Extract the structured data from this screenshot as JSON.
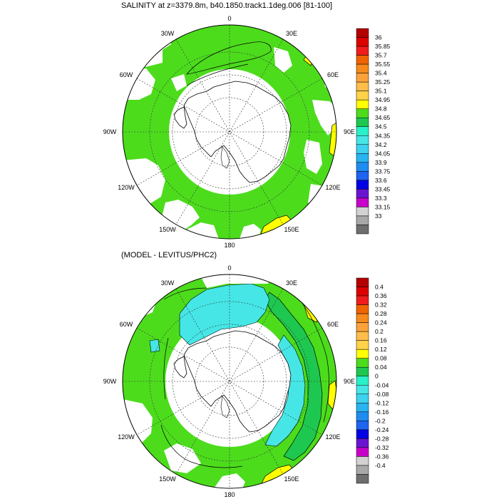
{
  "panels": [
    {
      "title": "SALINITY at z=3379.8m, b40.1850.track1.1deg.006 [81-100]",
      "labels": {
        "top": "0",
        "tr": "30E",
        "r1": "60E",
        "r": "90E",
        "r2": "120E",
        "br": "150E",
        "bottom": "180",
        "bl": "150W",
        "l2": "120W",
        "l": "90W",
        "l1": "60W",
        "tl": "30W"
      },
      "colorbar": {
        "colors": [
          "#b30000",
          "#dd0000",
          "#f01c1c",
          "#f06400",
          "#f78a1a",
          "#fba23a",
          "#ffbe4a",
          "#ffd24a",
          "#ffff00",
          "#4cdc1c",
          "#1ec850",
          "#28f0c8",
          "#46e6e6",
          "#3cd2f0",
          "#28b4f0",
          "#1e8cf0",
          "#1e64f0",
          "#0000e6",
          "#6a14d2",
          "#c800c8",
          "#d2d2d2",
          "#a8a8a8",
          "#6e6e6e"
        ],
        "labels": [
          "36",
          "35.85",
          "35.7",
          "35.55",
          "35.4",
          "35.25",
          "35.1",
          "34.95",
          "34.8",
          "34.65",
          "34.5",
          "34.35",
          "34.2",
          "34.05",
          "33.9",
          "33.75",
          "33.6",
          "33.45",
          "33.3",
          "33.15",
          "33"
        ]
      }
    },
    {
      "title": "(MODEL - LEVITUS/PHC2)",
      "labels": {
        "top": "0",
        "tr": "30E",
        "r1": "60E",
        "r": "90E",
        "r2": "120E",
        "br": "150E",
        "bottom": "180",
        "bl": "150W",
        "l2": "120W",
        "l": "90W",
        "l1": "60W",
        "tl": "30W"
      },
      "colorbar": {
        "colors": [
          "#b30000",
          "#dd0000",
          "#f01c1c",
          "#f06400",
          "#f78a1a",
          "#fba23a",
          "#ffbe4a",
          "#ffd24a",
          "#ffff00",
          "#4cdc1c",
          "#1ec850",
          "#28f0c8",
          "#46e6e6",
          "#3cd2f0",
          "#28b4f0",
          "#1e8cf0",
          "#1e64f0",
          "#0000e6",
          "#6a14d2",
          "#c800c8",
          "#d2d2d2",
          "#a8a8a8",
          "#6e6e6e"
        ],
        "labels": [
          "0.4",
          "0.36",
          "0.32",
          "0.28",
          "0.24",
          "0.2",
          "0.16",
          "0.12",
          "0.08",
          "0.04",
          "0",
          "-0.04",
          "-0.08",
          "-0.12",
          "-0.16",
          "-0.2",
          "-0.24",
          "-0.28",
          "-0.32",
          "-0.36",
          "-0.4"
        ]
      }
    }
  ]
}
